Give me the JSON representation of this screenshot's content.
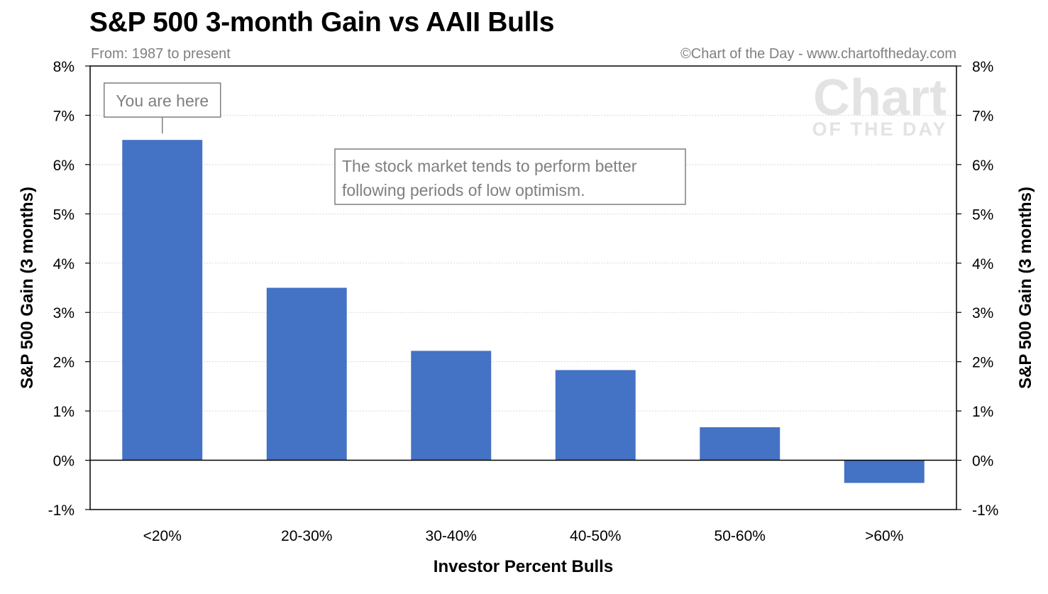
{
  "header": {
    "title": "S&P 500 3-month Gain vs AAII Bulls",
    "subtitle": "From: 1987 to present",
    "credit": "©Chart of the Day - www.chartoftheday.com"
  },
  "watermark": {
    "line1": "Chart",
    "line2": "OF THE DAY"
  },
  "annotations": {
    "marker": "You are here",
    "note_line1": "The stock market tends to perform better",
    "note_line2": "following periods of low optimism."
  },
  "chart_data": {
    "type": "bar",
    "title": "S&P 500 3-month Gain vs AAII Bulls",
    "xlabel": "Investor Percent Bulls",
    "ylabel": "S&P 500 Gain (3 months)",
    "ylabel_right": "S&P 500 Gain (3 months)",
    "categories": [
      "<20%",
      "20-30%",
      "30-40%",
      "40-50%",
      "50-60%",
      ">60%"
    ],
    "values": [
      6.5,
      3.5,
      2.22,
      1.83,
      0.67,
      -0.46
    ],
    "value_unit": "%",
    "ylim": [
      -1,
      8
    ],
    "yticks": [
      -1,
      0,
      1,
      2,
      3,
      4,
      5,
      6,
      7,
      8
    ],
    "grid": true,
    "bar_color": "#4472c4",
    "legend": "none"
  }
}
